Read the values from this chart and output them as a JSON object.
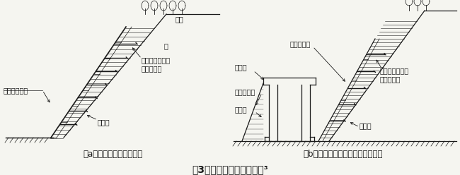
{
  "title": "図3：鉄筋挿入工の適用例³",
  "title_fontsize": 10,
  "background_color": "#f5f5f0",
  "text_color": "#1a1a1a",
  "figsize": [
    6.5,
    2.48
  ],
  "dpi": 100,
  "caption_a": "（a）急勾配切土への適用",
  "caption_b": "（b）構造物掘削等の仮設への適用",
  "label_a1": "のり面保護工",
  "label_a2": "標準設計による\n切土のり面",
  "label_a3": "補強材",
  "label_a4": "土砂",
  "label_a5": "岩",
  "label_b1": "構造物",
  "label_b2": "永久のり面",
  "label_b3": "仮設のり面",
  "label_b4": "埋戻し",
  "label_b5": "補強材",
  "label_b6": "標準設計による\n切土のり面"
}
